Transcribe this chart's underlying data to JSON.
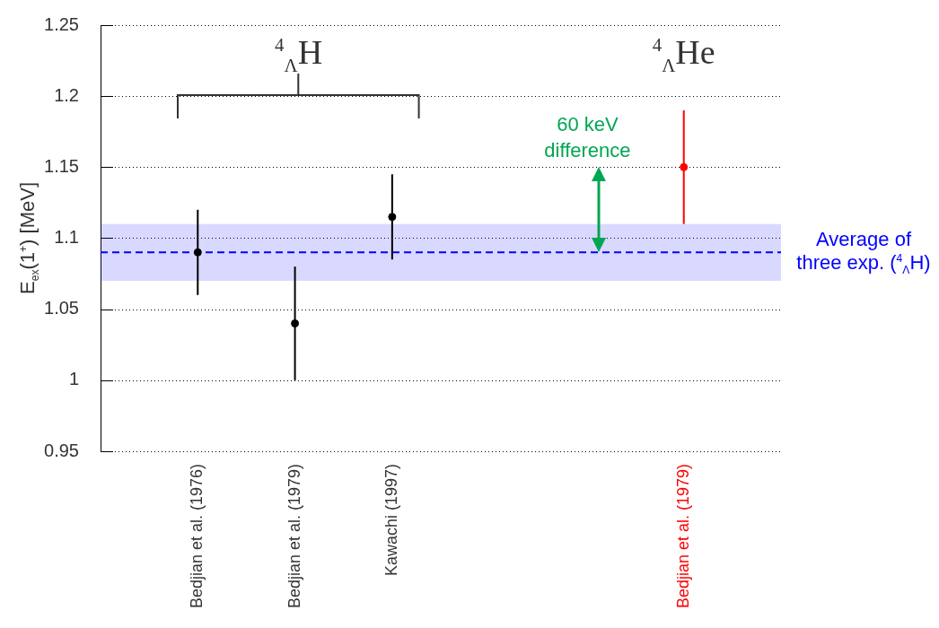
{
  "chart_data": {
    "type": "scatter",
    "ylabel": "E$_{ex}$(1$^{+}$)  [MeV]",
    "categories": [
      null,
      "Bedjian et al. (1976)",
      "Bedjian et al. (1979)",
      "Kawachi (1997)",
      null,
      null,
      "Bedjian et al. (1979)",
      null
    ],
    "series": [
      {
        "color": "#000000",
        "values": [
          null,
          1.09,
          1.04,
          1.115,
          null,
          null,
          null,
          null
        ],
        "errors": [
          null,
          0.03,
          0.04,
          0.03,
          null,
          null,
          null,
          null
        ]
      },
      {
        "color": "#ff0000",
        "values": [
          null,
          null,
          null,
          null,
          null,
          null,
          1.15,
          null
        ],
        "errors": [
          null,
          null,
          null,
          null,
          null,
          null,
          0.04,
          null
        ]
      }
    ],
    "ylim": [
      0.95,
      1.25
    ],
    "yticks": [
      0.95,
      1,
      1.05,
      1.1,
      1.15,
      1.2,
      1.25
    ],
    "grid": "y",
    "legend": false,
    "marker": "circle",
    "bands": [
      {
        "axis": "y",
        "from": 1.07,
        "to": 1.11,
        "label": "Average of three exp. ($^{4}$$_{Λ}$H)",
        "color": "#0000ff"
      }
    ],
    "ref_lines": [
      {
        "axis": "y",
        "value": 1.09,
        "color": "#0000ff",
        "line_style": "dashed"
      }
    ],
    "annotations": [
      "$^{4}$$_{Λ}$H",
      "$^{4}$$_{Λ}$He",
      "60 keV difference"
    ]
  }
}
